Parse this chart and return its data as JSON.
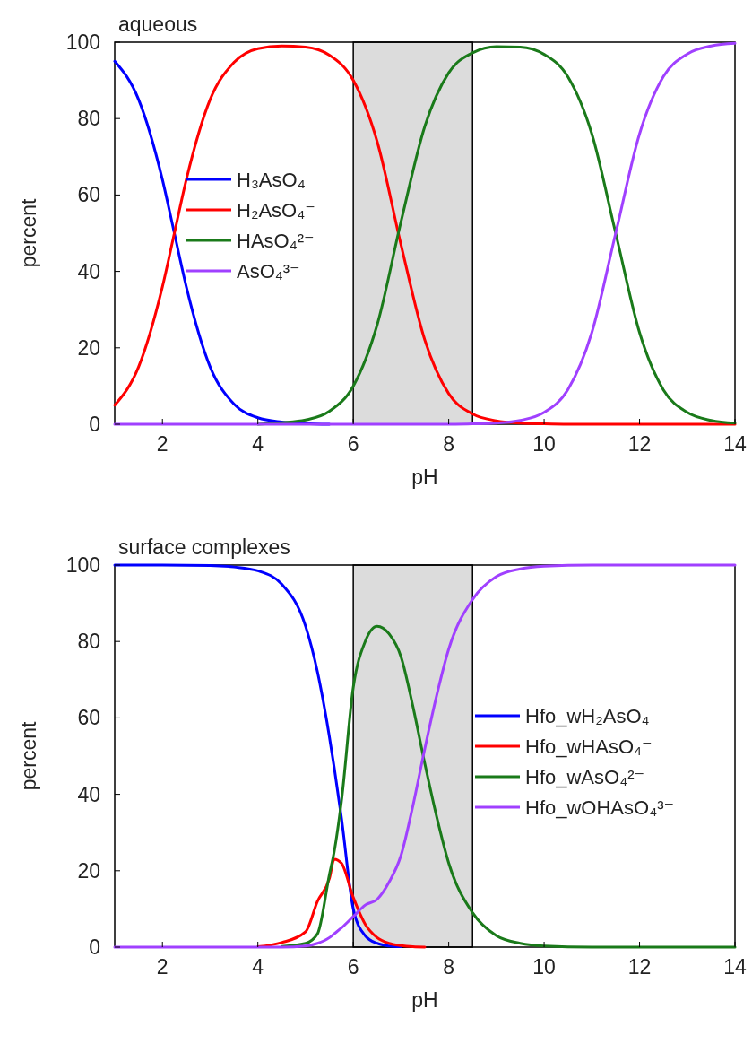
{
  "chart_data": [
    {
      "type": "line",
      "title": "aqueous",
      "xlabel": "pH",
      "ylabel": "percent",
      "xlim": [
        1,
        14
      ],
      "xticks": [
        2,
        4,
        6,
        8,
        10,
        12,
        14
      ],
      "ylim": [
        0,
        100
      ],
      "yticks": [
        0,
        20,
        40,
        60,
        80,
        100
      ],
      "legend": "left",
      "bands": [
        {
          "axis": "x",
          "from": 6,
          "to": 8.5,
          "color": "#dcdcdc"
        }
      ],
      "x": [
        1,
        1.5,
        2,
        2.25,
        2.5,
        3,
        3.5,
        4,
        4.5,
        5,
        5.5,
        6,
        6.5,
        7,
        7.5,
        8,
        8.5,
        9,
        9.5,
        10,
        10.5,
        11,
        11.5,
        12,
        12.5,
        13,
        13.5,
        14
      ],
      "series": [
        {
          "name": "H₃AsO₄",
          "color": "#0000ff",
          "values": [
            95,
            85,
            64,
            50,
            36,
            15,
            5.3,
            1.7,
            0.6,
            0.2,
            0,
            null,
            null,
            null,
            null,
            null,
            null,
            null,
            null,
            null,
            null,
            null,
            null,
            null,
            null,
            null,
            null,
            null
          ]
        },
        {
          "name": "H₂AsO₄⁻",
          "color": "#ff0000",
          "values": [
            5,
            15,
            36,
            50,
            64,
            85,
            94.7,
            98.3,
            99,
            98.7,
            96.6,
            90,
            74,
            47,
            22,
            8,
            2.7,
            0.9,
            0.3,
            0.1,
            0,
            0,
            0,
            0,
            0,
            0,
            0,
            0
          ]
        },
        {
          "name": "HAsO₄²⁻",
          "color": "#1a7a1a",
          "values": [
            null,
            null,
            null,
            null,
            null,
            null,
            null,
            0,
            0.4,
            1.1,
            3.4,
            10,
            26,
            53,
            78,
            92,
            97.2,
            98.8,
            98.7,
            96.8,
            90.9,
            76,
            50,
            24,
            9,
            3.1,
            1,
            0.3
          ]
        },
        {
          "name": "AsO₄³⁻",
          "color": "#a040ff",
          "values": [
            0,
            0,
            0,
            0,
            0,
            0,
            0,
            0,
            0,
            0,
            0,
            0,
            0,
            0,
            0,
            0,
            0.1,
            0.3,
            1,
            3.1,
            9.1,
            24,
            50,
            76,
            91,
            96.9,
            99,
            99.7
          ]
        }
      ]
    },
    {
      "type": "line",
      "title": "surface complexes",
      "xlabel": "pH",
      "ylabel": "percent",
      "xlim": [
        1,
        14
      ],
      "xticks": [
        2,
        4,
        6,
        8,
        10,
        12,
        14
      ],
      "ylim": [
        0,
        100
      ],
      "yticks": [
        0,
        20,
        40,
        60,
        80,
        100
      ],
      "legend": "right",
      "bands": [
        {
          "axis": "x",
          "from": 6,
          "to": 8.5,
          "color": "#dcdcdc"
        }
      ],
      "x": [
        1,
        2,
        3,
        3.5,
        4,
        4.5,
        5,
        5.25,
        5.5,
        5.6,
        5.75,
        6,
        6.25,
        6.5,
        6.75,
        7,
        7.25,
        7.5,
        7.75,
        8,
        8.5,
        9,
        9.5,
        10,
        11,
        12,
        13,
        14
      ],
      "series": [
        {
          "name": "Hfo_wH₂AsO₄",
          "color": "#0000ff",
          "values": [
            100,
            100,
            99.9,
            99.5,
            98.5,
            95,
            84,
            72,
            55,
            47,
            34,
            10,
            3,
            1,
            0.3,
            0.1,
            null,
            null,
            null,
            null,
            null,
            null,
            null,
            null,
            null,
            null,
            null,
            null
          ]
        },
        {
          "name": "Hfo_wHAsO₄⁻",
          "color": "#ff0000",
          "values": [
            null,
            null,
            null,
            null,
            0.1,
            1.2,
            4,
            12,
            18,
            23,
            22,
            13,
            6,
            2.5,
            1,
            0.4,
            0.1,
            0,
            null,
            null,
            null,
            null,
            null,
            null,
            null,
            null,
            null,
            null
          ]
        },
        {
          "name": "Hfo_wAsO₄²⁻",
          "color": "#1a7a1a",
          "values": [
            null,
            null,
            null,
            null,
            null,
            0.2,
            1,
            3.5,
            19,
            25,
            38,
            68,
            80,
            84,
            82,
            76,
            63,
            48,
            34,
            22,
            9,
            3,
            1,
            0.3,
            0,
            0,
            0,
            0
          ]
        },
        {
          "name": "Hfo_wOHAsO₄³⁻",
          "color": "#a040ff",
          "values": [
            0,
            0,
            0,
            0,
            0,
            0,
            0.3,
            1,
            2.5,
            3.5,
            5,
            8,
            11,
            12.5,
            17,
            24,
            37,
            52,
            66,
            78,
            91,
            97,
            99,
            99.7,
            100,
            100,
            100,
            100
          ]
        }
      ]
    }
  ]
}
